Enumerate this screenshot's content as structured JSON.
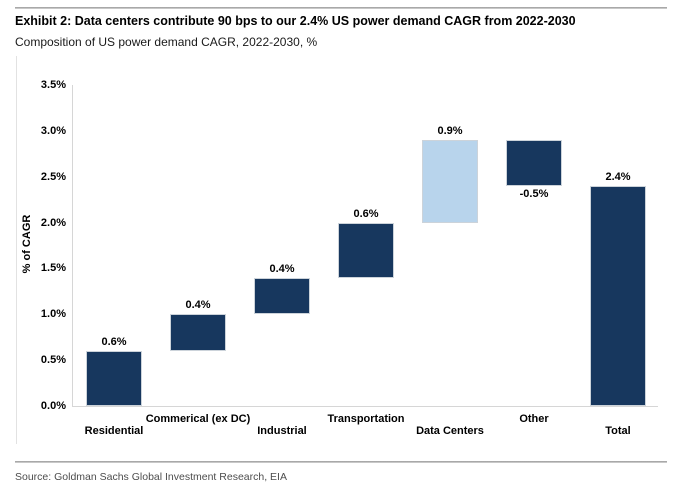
{
  "header": {
    "title": "Exhibit 2: Data centers contribute 90 bps to our 2.4% US power demand CAGR from 2022-2030",
    "subtitle": "Composition of US power demand CAGR, 2022-2030, %"
  },
  "source": {
    "text": "Source: Goldman Sachs Global Investment Research, EIA"
  },
  "chart_data": {
    "type": "bar",
    "subtype": "waterfall",
    "title": "Exhibit 2: Data centers contribute 90 bps to our 2.4% US power demand CAGR from 2022-2030",
    "subtitle": "Composition of US power demand CAGR, 2022-2030, %",
    "xlabel": "",
    "ylabel": "% of CAGR",
    "ylim": [
      0,
      3.5
    ],
    "ytick_step": 0.5,
    "ytick_labels": [
      "0.0%",
      "0.5%",
      "1.0%",
      "1.5%",
      "2.0%",
      "2.5%",
      "3.0%",
      "3.5%"
    ],
    "grid": false,
    "legend": "none",
    "categories": [
      "Residential",
      "Commerical (ex DC)",
      "Industrial",
      "Transportation",
      "Data Centers",
      "Other",
      "Total"
    ],
    "bars": [
      {
        "category": "Residential",
        "value": 0.6,
        "label": "0.6%",
        "start": 0.0,
        "end": 0.6,
        "color": "navy",
        "label_position": "above"
      },
      {
        "category": "Commerical (ex DC)",
        "value": 0.4,
        "label": "0.4%",
        "start": 0.6,
        "end": 1.0,
        "color": "navy",
        "label_position": "above"
      },
      {
        "category": "Industrial",
        "value": 0.4,
        "label": "0.4%",
        "start": 1.0,
        "end": 1.4,
        "color": "navy",
        "label_position": "above"
      },
      {
        "category": "Transportation",
        "value": 0.6,
        "label": "0.6%",
        "start": 1.4,
        "end": 2.0,
        "color": "navy",
        "label_position": "above"
      },
      {
        "category": "Data Centers",
        "value": 0.9,
        "label": "0.9%",
        "start": 2.0,
        "end": 2.9,
        "color": "light_blue",
        "label_position": "above"
      },
      {
        "category": "Other",
        "value": -0.5,
        "label": "-0.5%",
        "start": 2.9,
        "end": 2.4,
        "color": "navy",
        "label_position": "below"
      },
      {
        "category": "Total",
        "value": 2.4,
        "label": "2.4%",
        "start": 0.0,
        "end": 2.4,
        "color": "navy",
        "label_position": "above"
      }
    ],
    "colors": {
      "navy": "#17375e",
      "light_blue": "#b8d4ec"
    }
  }
}
